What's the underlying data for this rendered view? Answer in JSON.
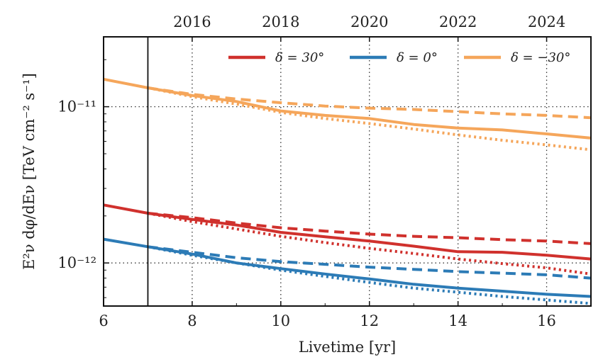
{
  "chart_data": {
    "type": "line",
    "xlabel": "Livetime [yr]",
    "ylabel": "E²ν dφ/dEν  [TeV cm⁻² s⁻¹]",
    "xlim": [
      6,
      17
    ],
    "ylim": [
      5.3e-13,
      2.8e-11
    ],
    "yscale": "log",
    "x_ticks": [
      "6",
      "8",
      "10",
      "12",
      "14",
      "16"
    ],
    "y_ticks": [
      "10⁻¹²",
      "10⁻¹¹"
    ],
    "top_axis_ticks": [
      "2016",
      "2018",
      "2020",
      "2022",
      "2024"
    ],
    "top_axis_values": [
      8,
      10,
      12,
      14,
      16
    ],
    "grid": "dotted lines at labeled ticks",
    "vertical_marker_x": 7,
    "legend_position": "top-right",
    "series": [
      {
        "name": "δ = 30°",
        "color": "#d0312d",
        "style": "solid",
        "points": [
          [
            6,
            2.35e-12
          ],
          [
            7,
            2.08e-12
          ],
          [
            8,
            1.9e-12
          ],
          [
            9,
            1.75e-12
          ],
          [
            10,
            1.57e-12
          ],
          [
            11,
            1.47e-12
          ],
          [
            12,
            1.38e-12
          ],
          [
            13,
            1.28e-12
          ],
          [
            14,
            1.18e-12
          ],
          [
            15,
            1.17e-12
          ],
          [
            16,
            1.12e-12
          ],
          [
            17,
            1.06e-12
          ]
        ]
      },
      {
        "name": "δ = 30°",
        "color": "#d0312d",
        "style": "dashed",
        "points": [
          [
            7,
            2.08e-12
          ],
          [
            8,
            1.95e-12
          ],
          [
            9,
            1.8e-12
          ],
          [
            10,
            1.68e-12
          ],
          [
            11,
            1.6e-12
          ],
          [
            12,
            1.53e-12
          ],
          [
            13,
            1.48e-12
          ],
          [
            14,
            1.45e-12
          ],
          [
            15,
            1.41e-12
          ],
          [
            16,
            1.38e-12
          ],
          [
            17,
            1.33e-12
          ]
        ]
      },
      {
        "name": "δ = 30°",
        "color": "#d0312d",
        "style": "dotted",
        "points": [
          [
            7,
            2.08e-12
          ],
          [
            8,
            1.84e-12
          ],
          [
            9,
            1.65e-12
          ],
          [
            10,
            1.48e-12
          ],
          [
            11,
            1.35e-12
          ],
          [
            12,
            1.24e-12
          ],
          [
            13,
            1.15e-12
          ],
          [
            14,
            1.06e-12
          ],
          [
            15,
            9.9e-13
          ],
          [
            16,
            9.3e-13
          ],
          [
            17,
            8.5e-13
          ]
        ]
      },
      {
        "name": "δ = 0°",
        "color": "#2c7bb6",
        "style": "solid",
        "points": [
          [
            6,
            1.42e-12
          ],
          [
            7,
            1.27e-12
          ],
          [
            8,
            1.14e-12
          ],
          [
            9,
            1e-12
          ],
          [
            10,
            9.2e-13
          ],
          [
            11,
            8.5e-13
          ],
          [
            12,
            7.9e-13
          ],
          [
            13,
            7.3e-13
          ],
          [
            14,
            6.9e-13
          ],
          [
            15,
            6.6e-13
          ],
          [
            16,
            6.3e-13
          ],
          [
            17,
            6.1e-13
          ]
        ]
      },
      {
        "name": "δ = 0°",
        "color": "#2c7bb6",
        "style": "dashed",
        "points": [
          [
            7,
            1.27e-12
          ],
          [
            8,
            1.17e-12
          ],
          [
            9,
            1.08e-12
          ],
          [
            10,
            1.02e-12
          ],
          [
            11,
            9.8e-13
          ],
          [
            12,
            9.4e-13
          ],
          [
            13,
            9.1e-13
          ],
          [
            14,
            8.8e-13
          ],
          [
            15,
            8.6e-13
          ],
          [
            16,
            8.4e-13
          ],
          [
            17,
            8e-13
          ]
        ]
      },
      {
        "name": "δ = 0°",
        "color": "#2c7bb6",
        "style": "dotted",
        "points": [
          [
            7,
            1.27e-12
          ],
          [
            8,
            1.12e-12
          ],
          [
            9,
            1e-12
          ],
          [
            10,
            9e-13
          ],
          [
            11,
            8.2e-13
          ],
          [
            12,
            7.5e-13
          ],
          [
            13,
            6.9e-13
          ],
          [
            14,
            6.5e-13
          ],
          [
            15,
            6.1e-13
          ],
          [
            16,
            5.8e-13
          ],
          [
            17,
            5.5e-13
          ]
        ]
      },
      {
        "name": "δ = −30°",
        "color": "#f5a65b",
        "style": "solid",
        "points": [
          [
            6,
            1.5e-11
          ],
          [
            7,
            1.32e-11
          ],
          [
            8,
            1.18e-11
          ],
          [
            9,
            1.08e-11
          ],
          [
            10,
            9.4e-12
          ],
          [
            11,
            8.8e-12
          ],
          [
            12,
            8.4e-12
          ],
          [
            13,
            7.7e-12
          ],
          [
            14,
            7.3e-12
          ],
          [
            15,
            7.1e-12
          ],
          [
            16,
            6.7e-12
          ],
          [
            17,
            6.3e-12
          ]
        ]
      },
      {
        "name": "δ = −30°",
        "color": "#f5a65b",
        "style": "dashed",
        "points": [
          [
            7,
            1.32e-11
          ],
          [
            8,
            1.2e-11
          ],
          [
            9,
            1.12e-11
          ],
          [
            10,
            1.06e-11
          ],
          [
            11,
            1.01e-11
          ],
          [
            12,
            9.8e-12
          ],
          [
            13,
            9.6e-12
          ],
          [
            14,
            9.3e-12
          ],
          [
            15,
            9e-12
          ],
          [
            16,
            8.8e-12
          ],
          [
            17,
            8.5e-12
          ]
        ]
      },
      {
        "name": "δ = −30°",
        "color": "#f5a65b",
        "style": "dotted",
        "points": [
          [
            7,
            1.32e-11
          ],
          [
            8,
            1.16e-11
          ],
          [
            9,
            1.04e-11
          ],
          [
            10,
            9.2e-12
          ],
          [
            11,
            8.4e-12
          ],
          [
            12,
            7.8e-12
          ],
          [
            13,
            7.2e-12
          ],
          [
            14,
            6.6e-12
          ],
          [
            15,
            6.1e-12
          ],
          [
            16,
            5.7e-12
          ],
          [
            17,
            5.3e-12
          ]
        ]
      }
    ],
    "legend": [
      {
        "label": "δ = 30°",
        "color": "#d0312d"
      },
      {
        "label": "δ = 0°",
        "color": "#2c7bb6"
      },
      {
        "label": "δ = −30°",
        "color": "#f5a65b"
      }
    ]
  }
}
